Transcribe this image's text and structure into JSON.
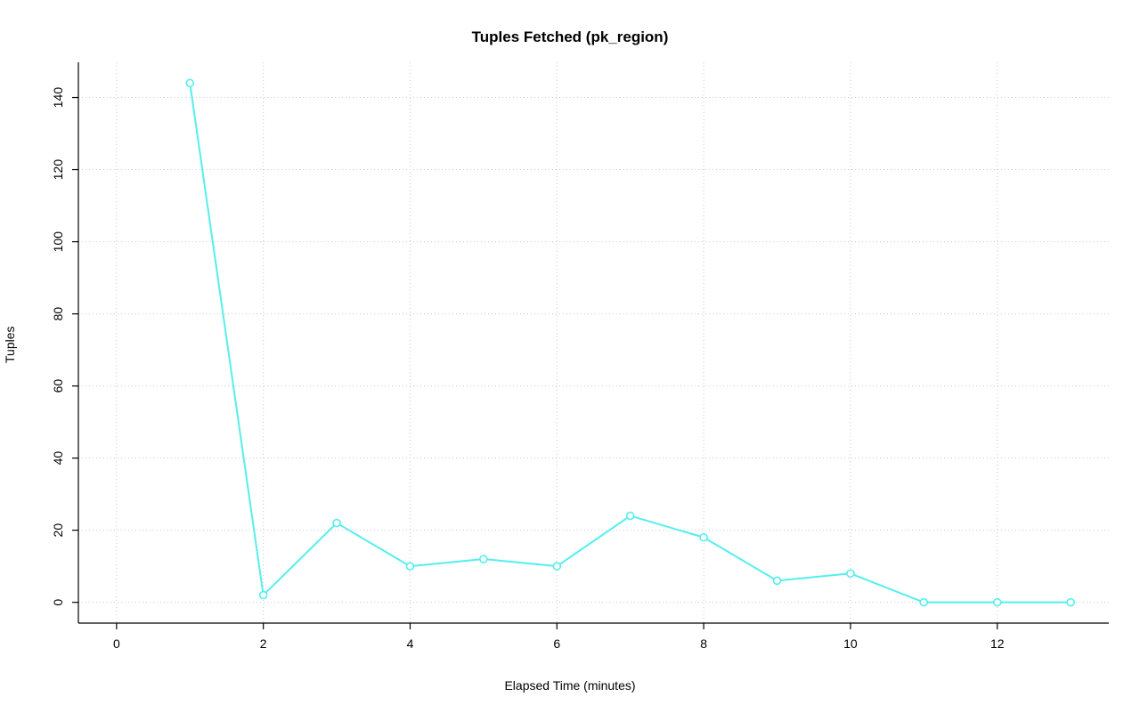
{
  "chart_data": {
    "type": "line",
    "title": "Tuples Fetched (pk_region)",
    "xlabel": "Elapsed Time (minutes)",
    "ylabel": "Tuples",
    "x": [
      1,
      2,
      3,
      4,
      5,
      6,
      7,
      8,
      9,
      10,
      11,
      12,
      13
    ],
    "values": [
      144,
      2,
      22,
      10,
      12,
      10,
      24,
      18,
      6,
      8,
      0,
      0,
      0
    ],
    "xticks": [
      0,
      2,
      4,
      6,
      8,
      10,
      12
    ],
    "yticks": [
      0,
      20,
      40,
      60,
      80,
      100,
      120,
      140
    ],
    "xlim": [
      -0.52,
      13.52
    ],
    "ylim": [
      -5.76,
      149.76
    ],
    "grid": true,
    "grid_style": "dotted",
    "grid_color": "#c8c8c8",
    "line_color": "#55eeee",
    "point_style": "open-circle",
    "axis_color": "#000000",
    "background": "#ffffff",
    "legend": "none"
  }
}
